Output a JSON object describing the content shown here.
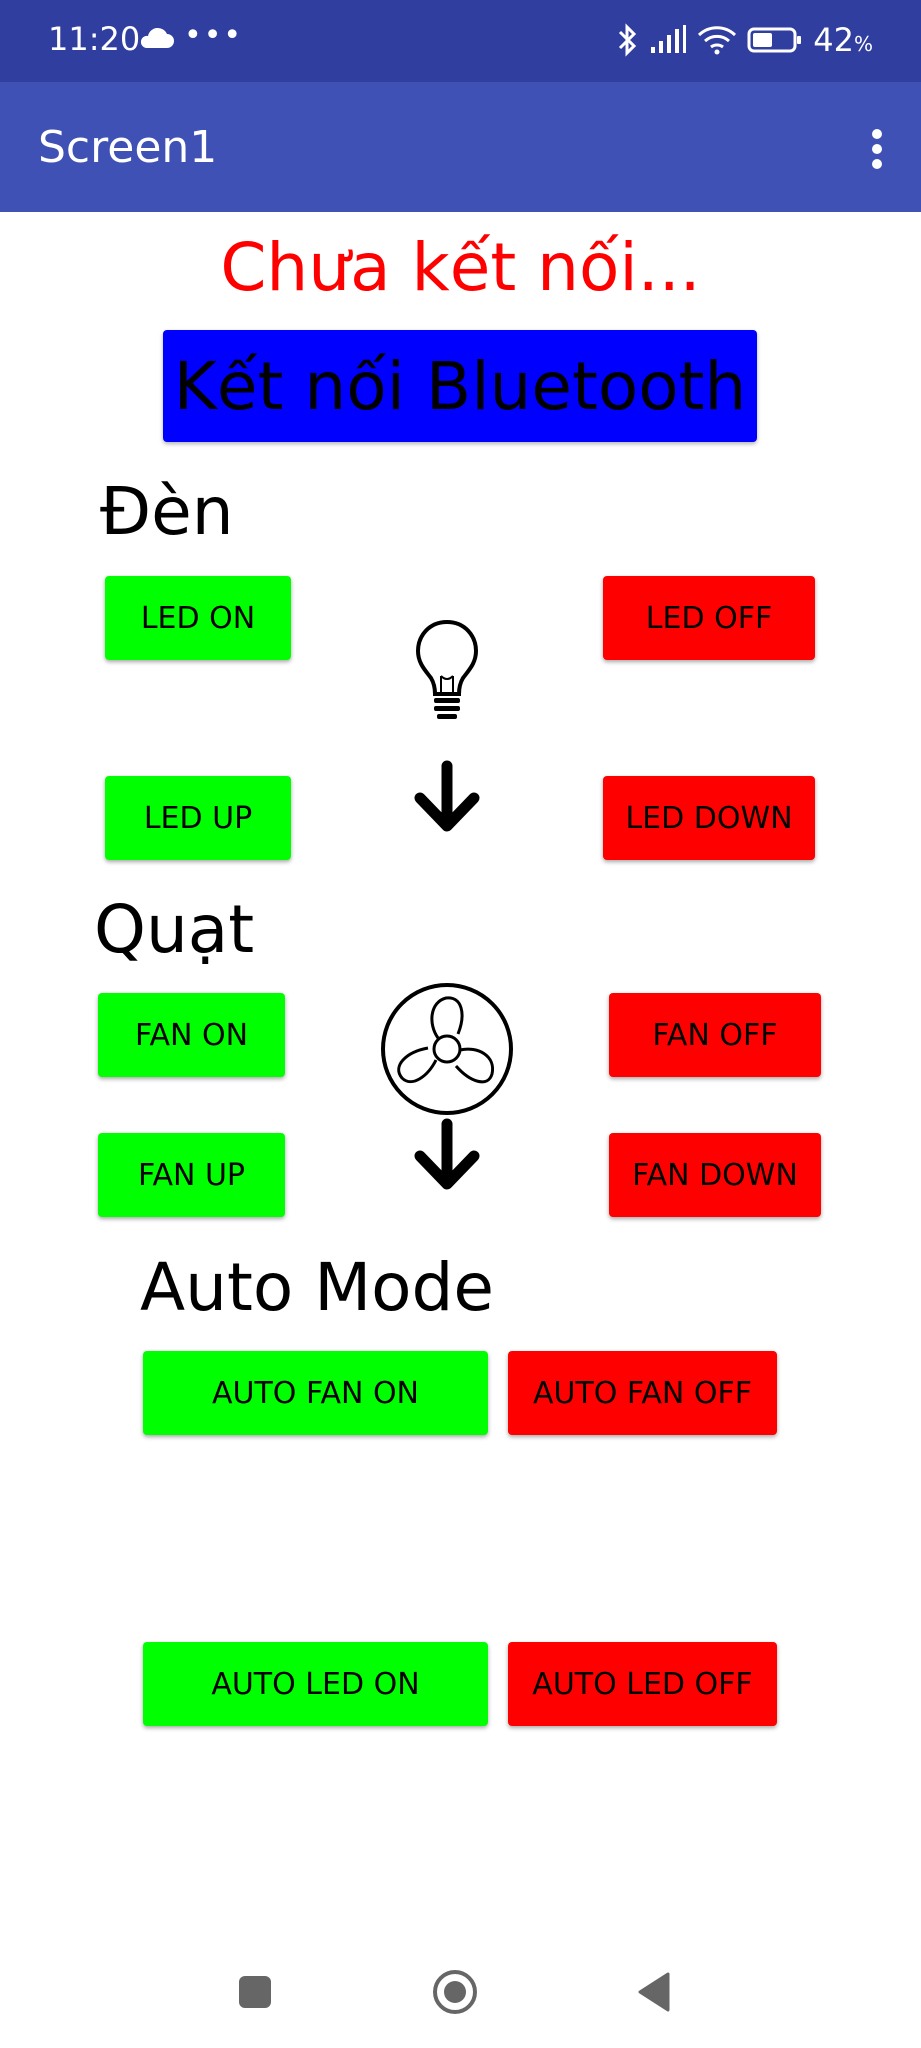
{
  "status_bar": {
    "time": "11:20",
    "dots": "•••",
    "battery": "42",
    "battery_unit": "%"
  },
  "app_bar": {
    "title": "Screen1"
  },
  "main": {
    "connection_status": "Chưa kết nối...",
    "connect_button": "Kết nối Bluetooth",
    "light_section": {
      "label": "Đèn",
      "led_on": "LED ON",
      "led_off": "LED OFF",
      "led_up": "LED UP",
      "led_down": "LED DOWN"
    },
    "fan_section": {
      "label": "Quạt",
      "fan_on": "FAN ON",
      "fan_off": "FAN OFF",
      "fan_up": "FAN UP",
      "fan_down": "FAN DOWN"
    },
    "auto_section": {
      "label": "Auto Mode",
      "auto_fan_on": "AUTO FAN ON",
      "auto_fan_off": "AUTO FAN OFF",
      "auto_led_on": "AUTO LED ON",
      "auto_led_off": "AUTO LED OFF"
    }
  },
  "colors": {
    "status_bar": "#303F9F",
    "app_bar": "#3F51B5",
    "on_button": "#00FF00",
    "off_button": "#FF0000",
    "bluetooth_button": "#0000FF",
    "status_text": "#FF0000"
  },
  "icons": {
    "light": "lightbulb-icon",
    "fan": "fan-icon",
    "arrow": "arrow-down-icon"
  }
}
